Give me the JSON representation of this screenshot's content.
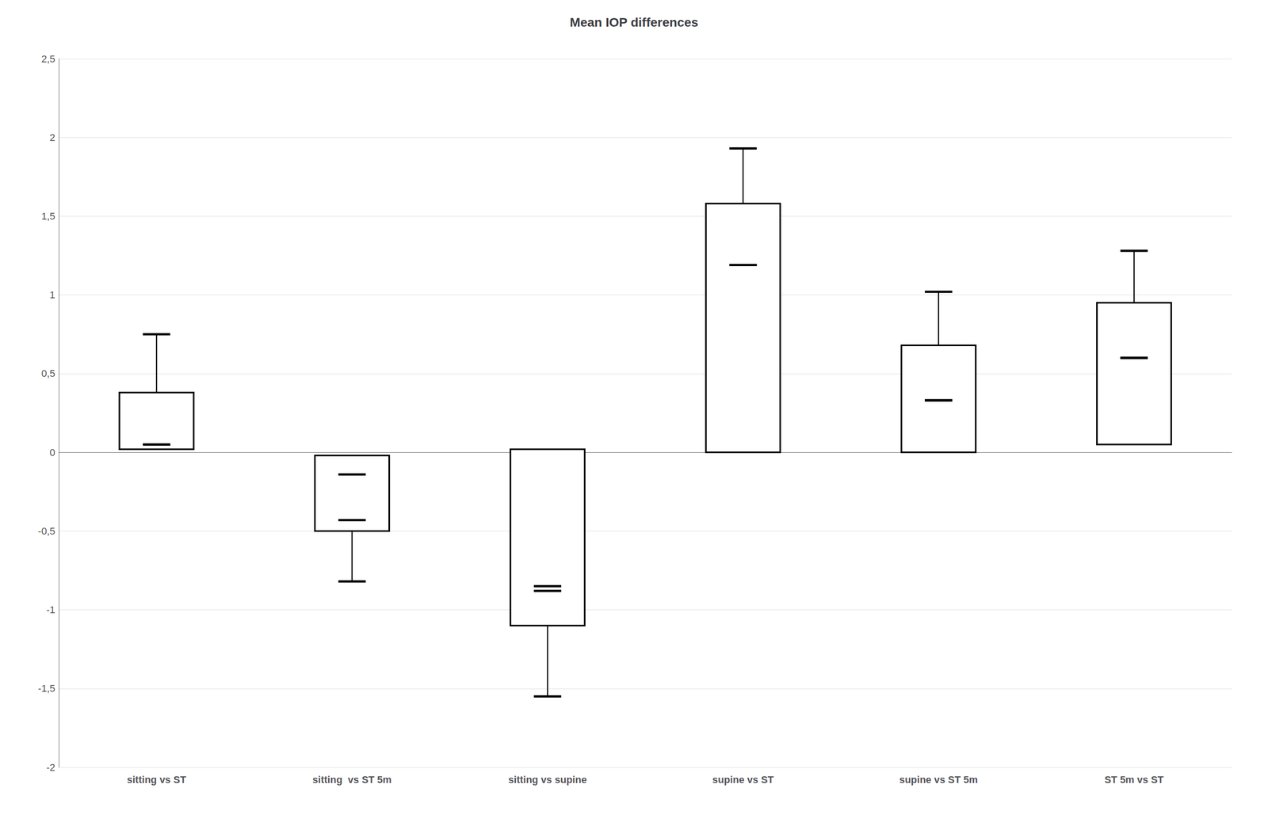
{
  "chart_data": {
    "type": "boxplot",
    "title": "Mean IOP differences",
    "categories": [
      "sitting vs ST",
      "sitting  vs ST 5m",
      "sitting vs supine",
      "supine vs ST",
      "supine vs ST 5m",
      "ST 5m vs ST"
    ],
    "box_lower": [
      0.02,
      -0.5,
      -1.1,
      0.0,
      0.0,
      0.05
    ],
    "box_upper": [
      0.38,
      -0.02,
      0.02,
      1.58,
      0.68,
      0.95
    ],
    "whisker_lower": [
      0.05,
      -0.82,
      -1.55,
      1.19,
      0.33,
      0.6
    ],
    "whisker_upper": [
      0.75,
      -0.14,
      -0.85,
      1.93,
      1.02,
      1.28
    ],
    "median": [
      0.05,
      -0.43,
      -0.88,
      1.19,
      0.33,
      0.6
    ],
    "color": "#000000",
    "ylim": [
      -2.0,
      2.5
    ],
    "yticks": [
      -2,
      {
        "value": -1.5,
        "label": "-1,5"
      },
      -1,
      {
        "value": -0.5,
        "label": "-0,5"
      },
      0,
      {
        "value": 0.5,
        "label": "0,5"
      },
      1,
      {
        "value": 1.5,
        "label": "1,5"
      },
      2,
      {
        "value": 2.5,
        "label": "2,5"
      }
    ],
    "grid": true
  }
}
